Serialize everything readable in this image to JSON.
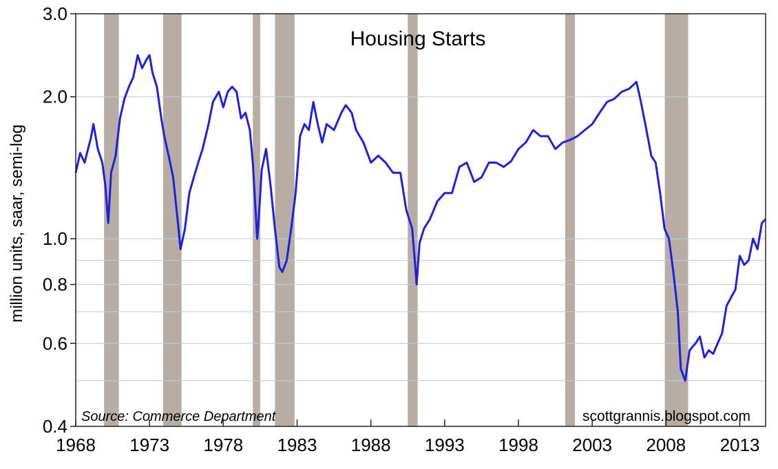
{
  "chart_data": {
    "type": "line",
    "title": "Housing Starts",
    "ylabel": "million units, saar, semi-log",
    "xlabel": "",
    "y_scale": "log",
    "ylim": [
      0.4,
      3.0
    ],
    "xlim": [
      1968,
      2014.75
    ],
    "x_ticks": [
      "1968",
      "1973",
      "1978",
      "1983",
      "1988",
      "1993",
      "1998",
      "2003",
      "2008",
      "2013"
    ],
    "y_ticks": [
      "3.0",
      "2.0",
      "1.0",
      "0.8",
      "0.6",
      "0.4"
    ],
    "y_gridlines": [
      0.5,
      0.6,
      0.7,
      0.8,
      0.9,
      1.0,
      2.0
    ],
    "grid": true,
    "colors": {
      "line": "#1f1fe0",
      "recession": "#b8ada4",
      "grid": "#b9cfe0"
    },
    "recessions": [
      [
        1969.92,
        1970.92
      ],
      [
        1973.92,
        1975.17
      ],
      [
        1980.0,
        1980.5
      ],
      [
        1981.5,
        1982.83
      ],
      [
        1990.5,
        1991.17
      ],
      [
        2001.17,
        2001.83
      ],
      [
        2007.92,
        2009.5
      ]
    ],
    "annotations": {
      "source": "Source:  Commerce Department",
      "credit": "scottgrannis.blogspot.com"
    },
    "series": [
      {
        "values": [
          [
            1968.0,
            1.38
          ],
          [
            1968.3,
            1.52
          ],
          [
            1968.6,
            1.45
          ],
          [
            1968.9,
            1.58
          ],
          [
            1969.0,
            1.62
          ],
          [
            1969.2,
            1.75
          ],
          [
            1969.5,
            1.55
          ],
          [
            1969.8,
            1.45
          ],
          [
            1970.0,
            1.3
          ],
          [
            1970.2,
            1.08
          ],
          [
            1970.4,
            1.38
          ],
          [
            1970.7,
            1.5
          ],
          [
            1971.0,
            1.8
          ],
          [
            1971.3,
            1.98
          ],
          [
            1971.6,
            2.1
          ],
          [
            1971.9,
            2.2
          ],
          [
            1972.2,
            2.45
          ],
          [
            1972.5,
            2.3
          ],
          [
            1972.8,
            2.4
          ],
          [
            1973.0,
            2.45
          ],
          [
            1973.2,
            2.25
          ],
          [
            1973.5,
            2.1
          ],
          [
            1973.8,
            1.8
          ],
          [
            1974.0,
            1.65
          ],
          [
            1974.3,
            1.5
          ],
          [
            1974.6,
            1.35
          ],
          [
            1974.9,
            1.1
          ],
          [
            1975.1,
            0.95
          ],
          [
            1975.4,
            1.05
          ],
          [
            1975.7,
            1.25
          ],
          [
            1976.0,
            1.35
          ],
          [
            1976.3,
            1.45
          ],
          [
            1976.6,
            1.55
          ],
          [
            1977.0,
            1.75
          ],
          [
            1977.3,
            1.95
          ],
          [
            1977.7,
            2.05
          ],
          [
            1978.0,
            1.9
          ],
          [
            1978.3,
            2.05
          ],
          [
            1978.6,
            2.1
          ],
          [
            1978.9,
            2.05
          ],
          [
            1979.2,
            1.8
          ],
          [
            1979.5,
            1.85
          ],
          [
            1979.8,
            1.7
          ],
          [
            1980.0,
            1.45
          ],
          [
            1980.3,
            1.0
          ],
          [
            1980.4,
            1.1
          ],
          [
            1980.6,
            1.4
          ],
          [
            1980.9,
            1.55
          ],
          [
            1981.2,
            1.3
          ],
          [
            1981.5,
            1.05
          ],
          [
            1981.8,
            0.87
          ],
          [
            1982.0,
            0.85
          ],
          [
            1982.3,
            0.9
          ],
          [
            1982.6,
            1.05
          ],
          [
            1982.9,
            1.25
          ],
          [
            1983.2,
            1.65
          ],
          [
            1983.5,
            1.75
          ],
          [
            1983.8,
            1.7
          ],
          [
            1984.1,
            1.95
          ],
          [
            1984.4,
            1.75
          ],
          [
            1984.7,
            1.6
          ],
          [
            1985.0,
            1.75
          ],
          [
            1985.5,
            1.7
          ],
          [
            1986.0,
            1.85
          ],
          [
            1986.3,
            1.92
          ],
          [
            1986.7,
            1.85
          ],
          [
            1987.0,
            1.7
          ],
          [
            1987.5,
            1.6
          ],
          [
            1988.0,
            1.45
          ],
          [
            1988.5,
            1.5
          ],
          [
            1989.0,
            1.45
          ],
          [
            1989.5,
            1.38
          ],
          [
            1990.0,
            1.38
          ],
          [
            1990.4,
            1.15
          ],
          [
            1990.8,
            1.05
          ],
          [
            1991.0,
            0.88
          ],
          [
            1991.1,
            0.8
          ],
          [
            1991.3,
            0.98
          ],
          [
            1991.6,
            1.05
          ],
          [
            1992.0,
            1.1
          ],
          [
            1992.5,
            1.2
          ],
          [
            1993.0,
            1.25
          ],
          [
            1993.5,
            1.25
          ],
          [
            1994.0,
            1.42
          ],
          [
            1994.5,
            1.45
          ],
          [
            1995.0,
            1.32
          ],
          [
            1995.5,
            1.35
          ],
          [
            1996.0,
            1.45
          ],
          [
            1996.5,
            1.45
          ],
          [
            1997.0,
            1.42
          ],
          [
            1997.5,
            1.46
          ],
          [
            1998.0,
            1.55
          ],
          [
            1998.5,
            1.6
          ],
          [
            1999.0,
            1.7
          ],
          [
            1999.5,
            1.65
          ],
          [
            2000.0,
            1.65
          ],
          [
            2000.5,
            1.55
          ],
          [
            2001.0,
            1.6
          ],
          [
            2001.5,
            1.62
          ],
          [
            2002.0,
            1.65
          ],
          [
            2002.5,
            1.7
          ],
          [
            2003.0,
            1.75
          ],
          [
            2003.5,
            1.85
          ],
          [
            2004.0,
            1.95
          ],
          [
            2004.5,
            1.98
          ],
          [
            2005.0,
            2.05
          ],
          [
            2005.5,
            2.08
          ],
          [
            2006.0,
            2.15
          ],
          [
            2006.3,
            1.95
          ],
          [
            2006.6,
            1.75
          ],
          [
            2007.0,
            1.5
          ],
          [
            2007.3,
            1.45
          ],
          [
            2007.6,
            1.25
          ],
          [
            2007.9,
            1.05
          ],
          [
            2008.2,
            1.0
          ],
          [
            2008.5,
            0.85
          ],
          [
            2008.8,
            0.7
          ],
          [
            2009.0,
            0.53
          ],
          [
            2009.3,
            0.5
          ],
          [
            2009.6,
            0.58
          ],
          [
            2010.0,
            0.6
          ],
          [
            2010.3,
            0.62
          ],
          [
            2010.6,
            0.56
          ],
          [
            2010.9,
            0.58
          ],
          [
            2011.2,
            0.57
          ],
          [
            2011.5,
            0.6
          ],
          [
            2011.8,
            0.63
          ],
          [
            2012.1,
            0.72
          ],
          [
            2012.4,
            0.75
          ],
          [
            2012.7,
            0.78
          ],
          [
            2013.0,
            0.92
          ],
          [
            2013.3,
            0.88
          ],
          [
            2013.6,
            0.9
          ],
          [
            2013.9,
            1.0
          ],
          [
            2014.2,
            0.95
          ],
          [
            2014.5,
            1.08
          ],
          [
            2014.75,
            1.1
          ]
        ]
      }
    ]
  }
}
